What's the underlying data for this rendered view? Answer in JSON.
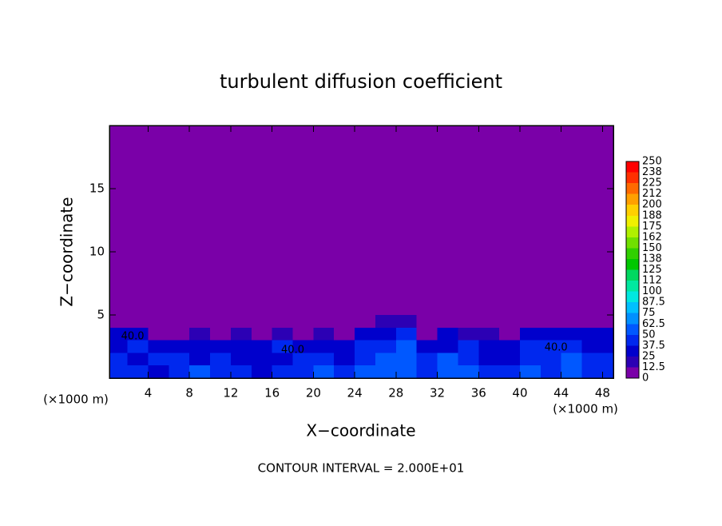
{
  "chart_data": {
    "type": "contour",
    "title": "turbulent diffusion coefficient",
    "x_label": "X−coordinate",
    "y_label": "Z−coordinate",
    "x_units": "(×1000 m)",
    "footer": "CONTOUR INTERVAL = 2.000E+01",
    "xlim": [
      0.25,
      49.05
    ],
    "ylim": [
      0,
      20
    ],
    "xticks": [
      4,
      8,
      12,
      16,
      20,
      24,
      28,
      32,
      36,
      40,
      44,
      48
    ],
    "yticks": [
      5,
      10,
      15
    ],
    "levels": [
      0,
      12.5,
      25,
      37.5,
      50,
      62.5,
      75,
      87.5,
      100,
      112,
      125,
      138,
      150,
      162,
      175,
      188,
      200,
      212,
      225,
      238,
      250
    ],
    "colors": [
      "#7a00a8",
      "#2c00b4",
      "#0000cc",
      "#0028ee",
      "#0058ff",
      "#0090ff",
      "#00c0ff",
      "#00e8e0",
      "#00e8a0",
      "#00d860",
      "#00c800",
      "#30d000",
      "#70e000",
      "#b0f000",
      "#f0f000",
      "#ffd000",
      "#ffa000",
      "#ff6a00",
      "#ff3000",
      "#ff0000",
      "#f08080"
    ],
    "field": {
      "x": [
        1,
        3,
        5,
        7,
        9,
        11,
        13,
        15,
        17,
        19,
        21,
        23,
        25,
        27,
        29,
        31,
        33,
        35,
        37,
        39,
        41,
        43,
        45,
        47,
        49
      ],
      "z": [
        0.5,
        1.5,
        2.5,
        3.5,
        4.5
      ],
      "values": [
        [
          45,
          40,
          35,
          40,
          50,
          45,
          40,
          35,
          40,
          45,
          50,
          40,
          50,
          60,
          55,
          45,
          60,
          50,
          40,
          45,
          50,
          45,
          55,
          45,
          40
        ],
        [
          40,
          35,
          40,
          45,
          35,
          40,
          30,
          35,
          35,
          45,
          40,
          30,
          45,
          55,
          60,
          40,
          50,
          40,
          35,
          35,
          45,
          40,
          50,
          40,
          40
        ],
        [
          35,
          40,
          35,
          30,
          30,
          35,
          30,
          25,
          40,
          35,
          30,
          35,
          40,
          45,
          50,
          30,
          35,
          40,
          35,
          30,
          40,
          45,
          40,
          35,
          35
        ],
        [
          30,
          25,
          10,
          5,
          20,
          0,
          15,
          10,
          20,
          10,
          15,
          5,
          30,
          35,
          40,
          10,
          25,
          20,
          15,
          10,
          30,
          35,
          30,
          25,
          30
        ],
        [
          0,
          0,
          0,
          0,
          10,
          0,
          0,
          0,
          0,
          0,
          0,
          0,
          0,
          15,
          20,
          10,
          0,
          0,
          0,
          0,
          0,
          0,
          0,
          0,
          0
        ]
      ]
    },
    "annotations": [
      {
        "text": "40.0",
        "x": 2.5,
        "z": 3.3
      },
      {
        "text": "40.0",
        "x": 18,
        "z": 2.2
      },
      {
        "text": "40.0",
        "x": 43.5,
        "z": 2.4
      }
    ]
  }
}
